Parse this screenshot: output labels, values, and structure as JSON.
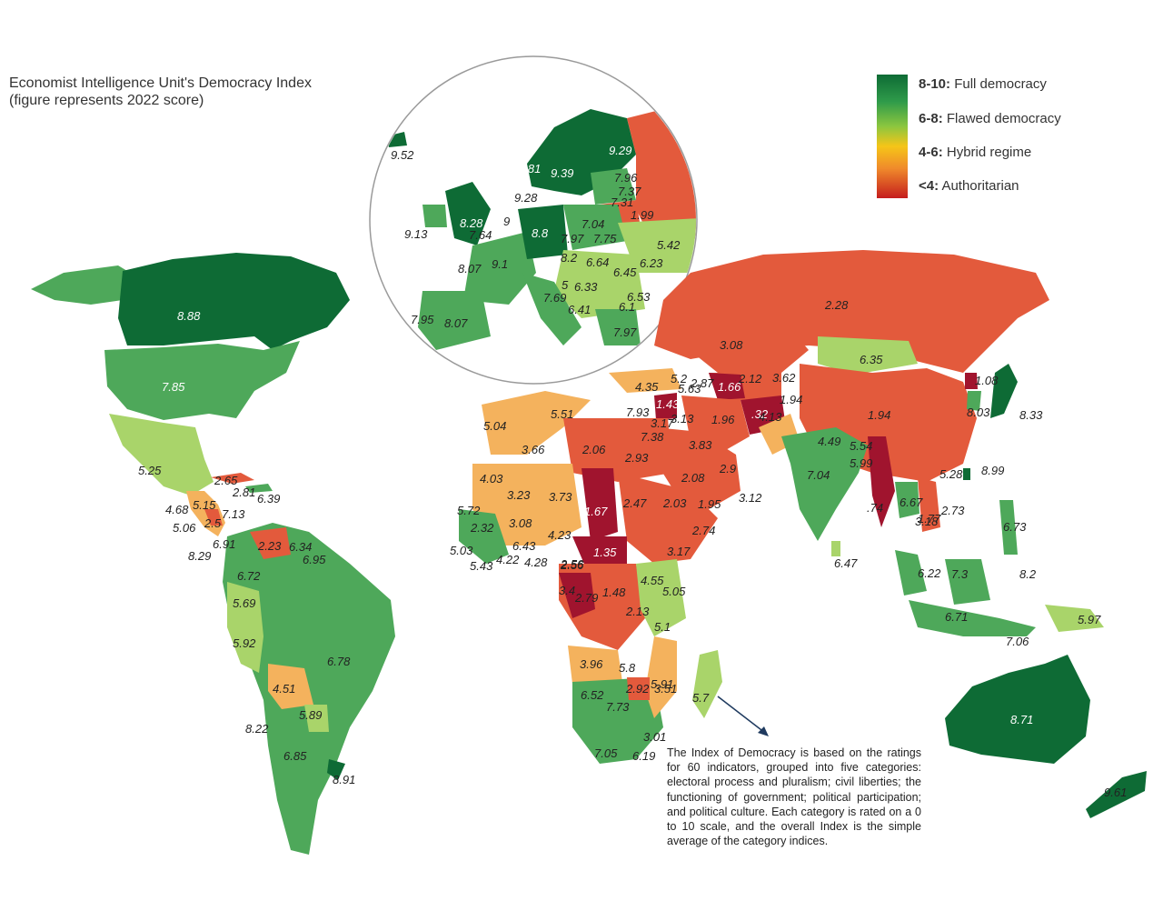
{
  "title": {
    "line1": "Economist Intelligence Unit's Democracy Index",
    "line2": "(figure represents 2022 score)"
  },
  "legend": [
    {
      "range": "8-10",
      "label": "Full democracy",
      "color": "#0e6b35"
    },
    {
      "range": "6-8",
      "label": "Flawed democracy",
      "color": "#4caf50"
    },
    {
      "range": "4-6",
      "label": "Hybrid regime",
      "color": "#f5b942"
    },
    {
      "range": "<4",
      "label": "Authoritarian",
      "color": "#c51d1d"
    }
  ],
  "colors": {
    "full": "#0e6b35",
    "flawed": "#4ea85a",
    "flawed_low": "#a9d46a",
    "hybrid": "#f4b25d",
    "auth": "#e35a3c",
    "auth_deep": "#a0142e"
  },
  "note": "The Index of Democracy is based on the ratings for 60 indicators, grouped into five categories: electoral process and pluralism; civil liberties; the functioning of government; political participation; and political culture. Each category is rated on a 0 to 10 scale, and the overall Index is the simple average of the category indices.",
  "scores": {
    "canada": "8.88",
    "usa": "7.85",
    "mexico": "5.25",
    "guatemala": "4.68",
    "honduras": "5.15",
    "el_salvador": "5.06",
    "nicaragua": "2.5",
    "costa_rica": "8.29",
    "panama": "6.91",
    "cuba": "2.65",
    "haiti": "2.81",
    "dominican_rep": "6.39",
    "jamaica": "7.13",
    "venezuela": "2.23",
    "guyana": "6.34",
    "suriname": "6.95",
    "colombia": "6.72",
    "ecuador": "5.69",
    "peru": "5.92",
    "brazil": "6.78",
    "bolivia": "4.51",
    "paraguay": "5.89",
    "chile": "8.22",
    "argentina": "6.85",
    "uruguay": "8.91",
    "iceland": "9.52",
    "ireland": "9.13",
    "uk": "8.28",
    "norway": "9.81",
    "sweden": "9.39",
    "finland": "9.29",
    "denmark": "9.28",
    "estonia": "7.96",
    "latvia": "7.37",
    "lithuania": "7.31",
    "belarus": "1.99",
    "poland": "7.04",
    "germany": "8.8",
    "netherlands": "9",
    "belgium": "7.64",
    "france": "8.07",
    "czechia": "7.97",
    "slovakia": "7.75",
    "ukraine": "5.42",
    "austria": "8.2",
    "hungary": "6.64",
    "switzerland": "9.1",
    "romania": "6.45",
    "moldova": "6.23",
    "croatia": "6.33",
    "serbia": "6.33",
    "slovenia": "5",
    "bulgaria": "6.53",
    "bosnia": "6.41",
    "n_macedonia": "6.1",
    "italy": "7.69",
    "portugal": "7.95",
    "spain": "8.07",
    "greece": "7.97",
    "russia": "2.28",
    "kazakhstan": "3.08",
    "mongolia": "6.35",
    "china": "1.94",
    "north_korea": "1.08",
    "south_korea": "8.03",
    "japan": "8.33",
    "turkey": "4.35",
    "georgia": "5.2",
    "armenia": "5.63",
    "azerbaijan": "2.87",
    "turkmenistan": "1.66",
    "uzbekistan": "2.12",
    "kyrgyzstan": "3.62",
    "tajikistan": "1.94",
    "afghanistan": ".32",
    "iran": "1.96",
    "iraq": "3.13",
    "syria": "1.43",
    "israel": "7.93",
    "lebanon": "3.17",
    "jordan": "7.38",
    "saudi": "2.08",
    "uae": "2.9",
    "oman": "3.12",
    "yemen": "1.95",
    "kuwait": "3.83",
    "pakistan": "4.13",
    "nepal": "4.49",
    "bhutan": "5.54",
    "bangladesh": "5.99",
    "india": "7.04",
    "sri_lanka": "6.47",
    "myanmar": ".74",
    "thailand": "6.67",
    "laos": "1.77",
    "vietnam": "2.73",
    "cambodia": "3.18",
    "taiwan": "8.99",
    "hong_kong": "5.28",
    "philippines": "6.73",
    "malaysia": "7.3",
    "indonesia": "6.71",
    "timor_leste": "7.06",
    "papua_ng": "5.97",
    "png_north": "8.2",
    "singapore": "6.22",
    "australia": "8.71",
    "new_zealand": "9.61",
    "morocco": "5.04",
    "algeria": "3.66",
    "tunisia": "5.51",
    "libya": "2.06",
    "egypt": "2.93",
    "mauritania": "4.03",
    "mali": "3.23",
    "niger": "3.73",
    "chad": "1.67",
    "sudan": "2.47",
    "eritrea": "2.03",
    "djibouti": "2.74",
    "ethiopia": "3.17",
    "senegal": "5.72",
    "gambia": "5.03",
    "guinea": "2.32",
    "guinea_bissau": "2.56",
    "sierra_leone": "5.43",
    "liberia": "4.22",
    "ivory_coast": "4.28",
    "burkina_faso": "3.08",
    "ghana": "6.43",
    "nigeria": "4.23",
    "cameroon": "2.56",
    "car": "1.35",
    "gabon": "3.4",
    "congo": "2.79",
    "drc": "1.48",
    "uganda": "4.55",
    "kenya": "5.05",
    "tanzania": "5.1",
    "rwanda": "2.13",
    "angola": "3.96",
    "zambia": "5.8",
    "malawi": "5.91",
    "mozambique": "3.51",
    "zimbabwe": "2.92",
    "namibia": "6.52",
    "botswana": "7.73",
    "south_africa": "7.05",
    "lesotho": "6.19",
    "eswatini": "3.01",
    "madagascar": "5.7"
  }
}
